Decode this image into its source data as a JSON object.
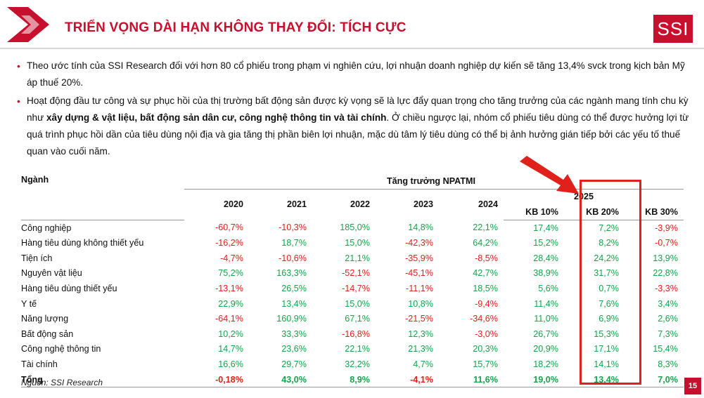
{
  "header": {
    "title": "TRIỂN VỌNG DÀI HẠN KHÔNG THAY ĐỔI: TÍCH CỰC",
    "logo_text": "SSI",
    "brand_color": "#c8102e"
  },
  "bullets": {
    "b1": "Theo ước tính của SSI Research đối với hơn 80 cổ phiếu trong phạm vi nghiên cứu, lợi nhuận doanh nghiệp dự kiến sẽ tăng 13,4% svck trong kịch bản Mỹ áp thuế 20%.",
    "b2_pre": "Hoạt động đầu tư công và sự phục hồi của thị trường bất động sản được kỳ vọng sẽ là lực đẩy quan trọng cho tăng trưởng của các ngành mang tính chu kỳ như ",
    "b2_bold": "xây dựng & vật liệu, bất động sản dân cư, công nghệ thông tin và tài chính",
    "b2_post": ". Ở chiều ngược lại, nhóm cổ phiếu tiêu dùng có thể được hưởng lợi từ quá trình phục hồi dần của tiêu dùng nội địa và gia tăng thị phần biên lợi nhuận, mặc dù tâm lý tiêu dùng có thể bị ảnh hưởng gián tiếp bởi các yếu tố thuế quan vào cuối năm."
  },
  "table": {
    "sector_header": "Ngành",
    "super_header": "Tăng trưởng NPATMI",
    "years": [
      "2020",
      "2021",
      "2022",
      "2023",
      "2024"
    ],
    "year_2025": "2025",
    "scenarios": [
      "KB 10%",
      "KB 20%",
      "KB 30%"
    ],
    "rows": [
      {
        "sector": "Công nghiệp",
        "v": [
          "-60,7%",
          "-10,3%",
          "185,0%",
          "14,8%",
          "22,1%",
          "17,4%",
          "7,2%",
          "-3,9%"
        ]
      },
      {
        "sector": "Hàng tiêu dùng không thiết yếu",
        "v": [
          "-16,2%",
          "18,7%",
          "15,0%",
          "-42,3%",
          "64,2%",
          "15,2%",
          "8,2%",
          "-0,7%"
        ]
      },
      {
        "sector": "Tiện ích",
        "v": [
          "-4,7%",
          "-10,6%",
          "21,1%",
          "-35,9%",
          "-8,5%",
          "28,4%",
          "24,2%",
          "13,9%"
        ]
      },
      {
        "sector": "Nguyên vật liệu",
        "v": [
          "75,2%",
          "163,3%",
          "-52,1%",
          "-45,1%",
          "42,7%",
          "38,9%",
          "31,7%",
          "22,8%"
        ]
      },
      {
        "sector": "Hàng tiêu dùng thiết yếu",
        "v": [
          "-13,1%",
          "26,5%",
          "-14,7%",
          "-11,1%",
          "18,5%",
          "5,6%",
          "0,7%",
          "-3,3%"
        ]
      },
      {
        "sector": "Y tế",
        "v": [
          "22,9%",
          "13,4%",
          "15,0%",
          "10,8%",
          "-9,4%",
          "11,4%",
          "7,6%",
          "3,4%"
        ]
      },
      {
        "sector": "Năng lượng",
        "v": [
          "-64,1%",
          "160,9%",
          "67,1%",
          "-21,5%",
          "-34,6%",
          "11,0%",
          "6,9%",
          "2,6%"
        ]
      },
      {
        "sector": "Bất động sản",
        "v": [
          "10,2%",
          "33,3%",
          "-16,8%",
          "12,3%",
          "-3,0%",
          "26,7%",
          "15,3%",
          "7,3%"
        ]
      },
      {
        "sector": "Công nghệ thông tin",
        "v": [
          "14,7%",
          "23,6%",
          "22,1%",
          "21,3%",
          "20,3%",
          "20,9%",
          "17,1%",
          "15,4%"
        ]
      },
      {
        "sector": "Tài chính",
        "v": [
          "16,6%",
          "29,7%",
          "32,2%",
          "4,7%",
          "15,7%",
          "18,2%",
          "14,1%",
          "8,3%"
        ]
      },
      {
        "sector": "Tổng",
        "v": [
          "-0,18%",
          "43,0%",
          "8,9%",
          "-4,1%",
          "11,6%",
          "19,0%",
          "13,4%",
          "7,0%"
        ]
      }
    ],
    "negative_color": "#e0201a",
    "positive_color": "#17a34a",
    "highlight_color": "#e0201a"
  },
  "source": "Nguồn: SSI Research",
  "page_number": "15"
}
